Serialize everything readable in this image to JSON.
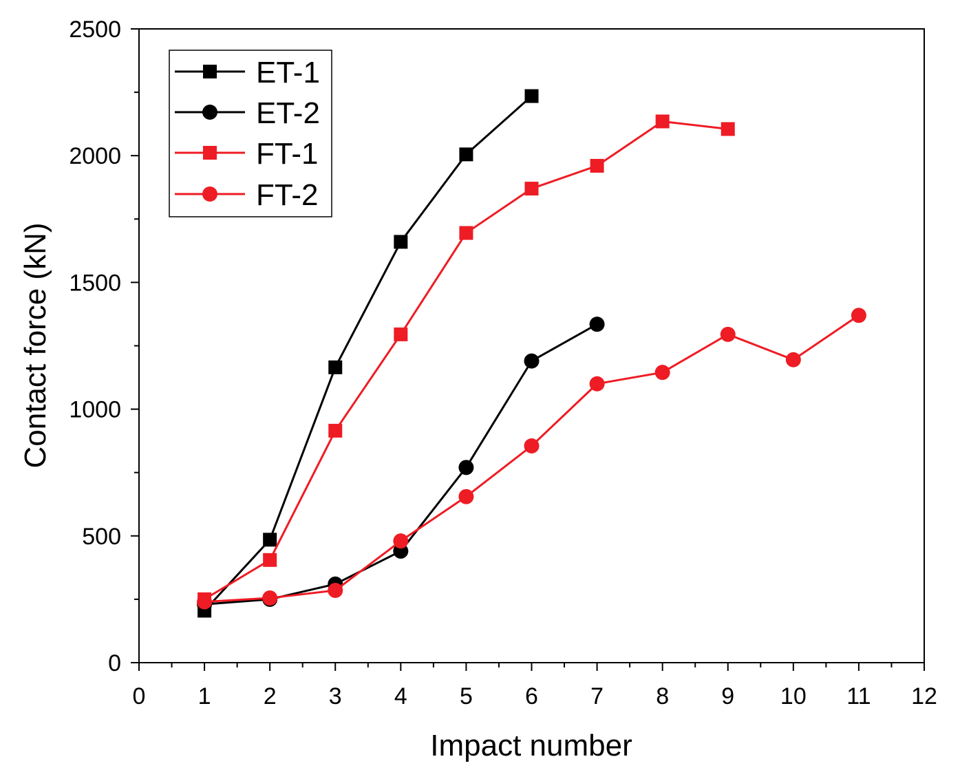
{
  "chart_data": {
    "type": "line",
    "title": "",
    "xlabel": "Impact number",
    "ylabel": "Contact force (kN)",
    "xlim": [
      0,
      12
    ],
    "ylim": [
      0,
      2500
    ],
    "xticks": [
      0,
      1,
      2,
      3,
      4,
      5,
      6,
      7,
      8,
      9,
      10,
      11,
      12
    ],
    "yticks": [
      0,
      500,
      1000,
      1500,
      2000,
      2500
    ],
    "grid": false,
    "legend_position": "top-left",
    "series": [
      {
        "name": "ET-1",
        "color": "#000000",
        "marker": "square",
        "x": [
          1,
          2,
          3,
          4,
          5,
          6
        ],
        "y": [
          205,
          485,
          1165,
          1660,
          2005,
          2235
        ]
      },
      {
        "name": "ET-2",
        "color": "#000000",
        "marker": "circle",
        "x": [
          1,
          2,
          3,
          4,
          5,
          6,
          7
        ],
        "y": [
          230,
          250,
          310,
          440,
          770,
          1190,
          1335
        ]
      },
      {
        "name": "FT-1",
        "color": "#ee1c24",
        "marker": "square",
        "x": [
          1,
          2,
          3,
          4,
          5,
          6,
          7,
          8,
          9
        ],
        "y": [
          250,
          405,
          915,
          1295,
          1695,
          1870,
          1960,
          2135,
          2105
        ]
      },
      {
        "name": "FT-2",
        "color": "#ee1c24",
        "marker": "circle",
        "x": [
          1,
          2,
          3,
          4,
          5,
          6,
          7,
          8,
          9,
          10,
          11
        ],
        "y": [
          240,
          255,
          285,
          480,
          655,
          855,
          1100,
          1145,
          1295,
          1195,
          1370
        ]
      }
    ]
  }
}
